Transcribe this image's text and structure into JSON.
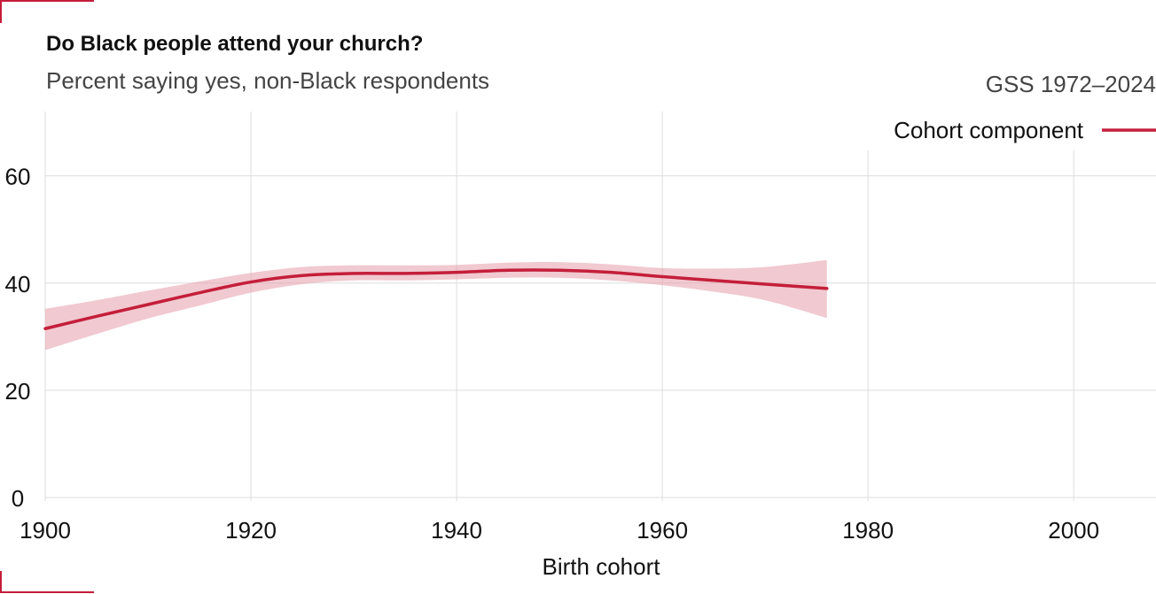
{
  "header": {
    "title": "Do Black people attend your church?",
    "subtitle": "Percent saying yes, non-Black respondents",
    "source": "GSS 1972–2024"
  },
  "colors": {
    "line": "#c41e3a",
    "band": "#e8a5b0",
    "grid": "#dddddd"
  },
  "chart_data": {
    "type": "line",
    "title": "Do Black people attend your church?",
    "subtitle": "Percent saying yes, non-Black respondents",
    "xlabel": "Birth cohort",
    "ylabel": "",
    "xlim": [
      1900,
      2008
    ],
    "ylim": [
      0,
      72
    ],
    "x_ticks": [
      1900,
      1920,
      1940,
      1960,
      1980,
      2000
    ],
    "y_ticks": [
      0,
      20,
      40,
      60
    ],
    "grid": true,
    "legend_position": "top-right",
    "series": [
      {
        "name": "Cohort component",
        "x": [
          1900,
          1905,
          1910,
          1915,
          1920,
          1925,
          1930,
          1935,
          1940,
          1945,
          1950,
          1955,
          1960,
          1965,
          1970,
          1976
        ],
        "y": [
          31.5,
          33.8,
          36.0,
          38.2,
          40.2,
          41.4,
          41.8,
          41.8,
          42.0,
          42.4,
          42.4,
          42.0,
          41.2,
          40.5,
          39.8,
          39.0
        ],
        "lower": [
          27.5,
          30.5,
          33.4,
          35.8,
          38.2,
          39.8,
          40.5,
          40.5,
          40.7,
          41.0,
          41.0,
          40.5,
          39.6,
          38.4,
          36.8,
          33.5
        ],
        "upper": [
          35.2,
          36.8,
          38.6,
          40.3,
          41.9,
          43.0,
          43.3,
          43.3,
          43.4,
          43.8,
          43.9,
          43.5,
          42.8,
          42.7,
          43.0,
          44.3
        ]
      }
    ]
  }
}
